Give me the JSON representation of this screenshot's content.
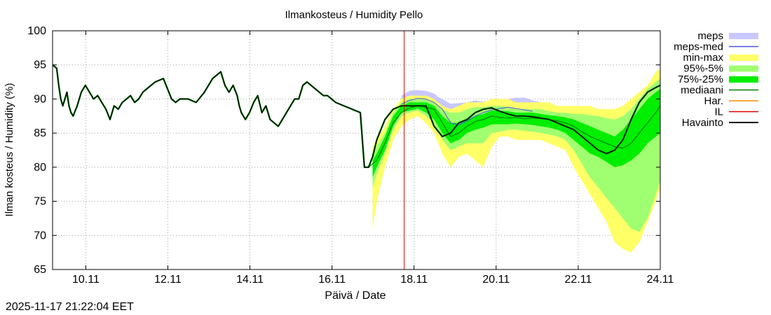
{
  "timestamp": "2025-11-17 21:22:04 EET",
  "chart_data": {
    "type": "line",
    "title": "Ilmankosteus / Humidity  Pello",
    "xlabel": "Päivä / Date",
    "ylabel": "Ilman kosteus / Humidity (%)",
    "ylim": [
      65,
      100
    ],
    "xlim": [
      9.3,
      24.11
    ],
    "grid": true,
    "legend_position": "right",
    "y_ticks": [
      65,
      70,
      75,
      80,
      85,
      90,
      95,
      100
    ],
    "x_ticks": [
      {
        "t": 10.11,
        "label": "10.11"
      },
      {
        "t": 12.11,
        "label": "12.11"
      },
      {
        "t": 14.11,
        "label": "14.11"
      },
      {
        "t": 16.11,
        "label": "16.11"
      },
      {
        "t": 18.11,
        "label": "18.11"
      },
      {
        "t": 20.11,
        "label": "20.11"
      },
      {
        "t": 22.11,
        "label": "22.11"
      },
      {
        "t": 24.11,
        "label": "24.11"
      }
    ],
    "now_marker": 17.87,
    "legend": [
      {
        "key": "meps",
        "label": "meps",
        "color": "#c8c8ff",
        "style": "band"
      },
      {
        "key": "meps_med",
        "label": "meps-med",
        "color": "#5050e0",
        "style": "line"
      },
      {
        "key": "minmax",
        "label": "min-max",
        "color": "#ffff66",
        "style": "band"
      },
      {
        "key": "p95_5",
        "label": "95%-5%",
        "color": "#a0ff70",
        "style": "band"
      },
      {
        "key": "p75_25",
        "label": "75%-25%",
        "color": "#00ee00",
        "style": "band"
      },
      {
        "key": "median",
        "label": "mediaani",
        "color": "#008000",
        "style": "line"
      },
      {
        "key": "har",
        "label": "Har.",
        "color": "#ff8800",
        "style": "line"
      },
      {
        "key": "il",
        "label": "IL",
        "color": "#dd0000",
        "style": "line"
      },
      {
        "key": "obs",
        "label": "Havainto",
        "color": "#000000",
        "style": "line"
      }
    ],
    "series": {
      "observed": {
        "x": [
          9.3,
          9.4,
          9.45,
          9.5,
          9.55,
          9.6,
          9.65,
          9.7,
          9.75,
          9.8,
          9.9,
          10.0,
          10.1,
          10.2,
          10.3,
          10.4,
          10.5,
          10.6,
          10.7,
          10.8,
          10.9,
          11.0,
          11.1,
          11.2,
          11.3,
          11.4,
          11.5,
          11.6,
          11.7,
          11.8,
          12.0,
          12.2,
          12.3,
          12.4,
          12.5,
          12.6,
          12.8,
          13.0,
          13.2,
          13.4,
          13.5,
          13.6,
          13.7,
          13.8,
          13.85,
          13.9,
          14.0,
          14.1,
          14.2,
          14.3,
          14.4,
          14.5,
          14.6,
          14.7,
          14.8,
          14.9,
          15.0,
          15.1,
          15.2,
          15.3,
          15.4,
          15.5,
          15.6,
          15.7,
          15.8,
          15.9,
          16.0,
          16.2,
          16.4,
          16.6,
          16.8,
          16.9,
          16.95,
          17.0,
          17.1,
          17.2,
          17.4,
          17.6,
          17.8,
          18.0,
          18.2,
          18.4,
          18.6,
          18.8,
          19.0,
          19.2,
          19.4,
          19.6,
          19.8,
          20.0,
          20.2,
          20.4,
          20.6,
          20.8,
          21.0,
          21.2,
          21.4,
          21.6,
          21.8,
          22.0,
          22.2,
          22.4,
          22.6,
          22.8,
          23.0,
          23.2,
          23.4,
          23.6,
          23.8,
          24.0,
          24.11
        ],
        "y": [
          95,
          94.5,
          92,
          90,
          89,
          90,
          91,
          89,
          88,
          87.5,
          89,
          91,
          92,
          91,
          90,
          90.5,
          89.5,
          88.5,
          87,
          89,
          88.5,
          89.5,
          90,
          90.5,
          89.5,
          90,
          91,
          91.5,
          92,
          92.5,
          93,
          90,
          89.5,
          90,
          90,
          90,
          89.5,
          91,
          93,
          94,
          92,
          91,
          92,
          90.5,
          89,
          88,
          87,
          88,
          89.5,
          90.5,
          88,
          89,
          87,
          86.5,
          86,
          87,
          88,
          89,
          90,
          90,
          92,
          92.5,
          92,
          91.5,
          91,
          90.5,
          90.5,
          89.5,
          89,
          88.5,
          88,
          80,
          80,
          80,
          81.5,
          84,
          87,
          88.5,
          89,
          89,
          89,
          89,
          86,
          84.5,
          85,
          86.5,
          87,
          88,
          88.5,
          88.7,
          88.2,
          87.8,
          87.5,
          87.5,
          87.4,
          87.2,
          87,
          86.5,
          86,
          85.5,
          84.5,
          83.5,
          82.5,
          82,
          82.5,
          84,
          87,
          89.5,
          91,
          91.7,
          92
        ]
      },
      "median": {
        "x": [
          17.0,
          17.2,
          17.4,
          17.6,
          17.8,
          18.0,
          18.2,
          18.4,
          18.6,
          18.8,
          19.0,
          19.2,
          19.4,
          19.6,
          19.8,
          20.0,
          20.2,
          20.4,
          20.6,
          20.8,
          21.0,
          21.2,
          21.4,
          21.6,
          21.8,
          22.0,
          22.2,
          22.4,
          22.6,
          22.8,
          23.0,
          23.2,
          23.4,
          23.6,
          23.8,
          24.0,
          24.11
        ],
        "y": [
          80,
          81,
          83.5,
          86.5,
          88,
          88.7,
          89,
          88.8,
          88.5,
          86.5,
          84.5,
          85,
          86,
          86.7,
          87,
          87.5,
          87.3,
          87.2,
          87.3,
          87.1,
          87.2,
          87.1,
          87.0,
          86.8,
          86.5,
          86.0,
          85.2,
          84.5,
          84.0,
          83.5,
          83.0,
          82.8,
          83.5,
          85.0,
          86.5,
          88.0,
          89.0
        ]
      },
      "band_minmax": {
        "x": [
          17.1,
          17.2,
          17.4,
          17.6,
          17.8,
          18.0,
          18.2,
          18.4,
          18.6,
          18.8,
          19.0,
          19.2,
          19.4,
          19.6,
          19.8,
          20.0,
          20.2,
          20.4,
          20.6,
          20.8,
          21.0,
          21.2,
          21.4,
          21.6,
          21.8,
          22.0,
          22.2,
          22.4,
          22.6,
          22.8,
          23.0,
          23.2,
          23.4,
          23.6,
          23.8,
          24.0,
          24.11
        ],
        "lower": [
          71,
          75,
          80,
          84,
          86,
          87,
          87.5,
          86.5,
          85,
          82,
          80,
          81.5,
          82,
          81,
          80,
          83,
          84.5,
          84.5,
          84,
          84,
          84,
          84,
          83.5,
          83,
          82.5,
          80,
          78,
          76,
          74,
          72,
          69,
          68,
          67.5,
          69,
          72,
          75,
          77
        ],
        "upper": [
          83,
          84,
          86,
          88.5,
          90,
          90.5,
          90.5,
          90.5,
          90,
          89,
          88.5,
          89,
          89.5,
          89.5,
          89.5,
          90,
          90,
          90,
          89.5,
          89.5,
          89.5,
          89.5,
          89.5,
          89,
          89,
          89,
          89,
          89,
          88.5,
          88.5,
          88.5,
          89,
          90,
          91,
          92,
          94,
          94.5
        ]
      },
      "band_95_5": {
        "x": [
          17.1,
          17.2,
          17.4,
          17.6,
          17.8,
          18.0,
          18.2,
          18.4,
          18.6,
          18.8,
          19.0,
          19.2,
          19.4,
          19.6,
          19.8,
          20.0,
          20.2,
          20.4,
          20.6,
          20.8,
          21.0,
          21.2,
          21.4,
          21.6,
          21.8,
          22.0,
          22.2,
          22.4,
          22.6,
          22.8,
          23.0,
          23.2,
          23.4,
          23.6,
          23.8,
          24.0,
          24.11
        ],
        "lower": [
          77,
          79,
          82,
          85.5,
          87.5,
          88,
          88.3,
          87.5,
          86.5,
          84,
          82.5,
          83,
          83.5,
          83.5,
          83.5,
          85,
          85.2,
          85.5,
          85.5,
          85.3,
          85.2,
          85,
          84.8,
          84.5,
          84,
          82.5,
          80.5,
          78.5,
          77,
          75.5,
          74,
          72.5,
          71,
          70.5,
          72.5,
          76,
          78
        ],
        "upper": [
          82,
          83,
          85,
          88,
          89.5,
          90,
          90,
          90,
          89.5,
          88.5,
          88,
          88,
          88.5,
          88.8,
          88.8,
          89,
          89,
          88.8,
          88.5,
          88.5,
          88.5,
          88.5,
          88.2,
          88,
          88,
          87.8,
          87.8,
          87.6,
          87.5,
          87.2,
          87,
          87.5,
          88.5,
          90,
          91.5,
          92.5,
          93
        ]
      },
      "band_75_25": {
        "x": [
          17.1,
          17.2,
          17.4,
          17.6,
          17.8,
          18.0,
          18.2,
          18.4,
          18.6,
          18.8,
          19.0,
          19.2,
          19.4,
          19.6,
          19.8,
          20.0,
          20.2,
          20.4,
          20.6,
          20.8,
          21.0,
          21.2,
          21.4,
          21.6,
          21.8,
          22.0,
          22.2,
          22.4,
          22.6,
          22.8,
          23.0,
          23.2,
          23.4,
          23.6,
          23.8,
          24.0,
          24.11
        ],
        "lower": [
          78.5,
          80,
          82.5,
          86,
          88,
          88.3,
          88.6,
          88,
          87,
          85,
          83.5,
          84,
          85,
          85.5,
          85.8,
          86.3,
          86.3,
          86.3,
          86.4,
          86.3,
          86.2,
          86,
          85.8,
          85.5,
          85,
          84,
          83,
          82,
          81.5,
          80.8,
          80,
          80.3,
          81,
          82,
          83.5,
          84.5,
          85
        ],
        "upper": [
          81,
          82,
          84.5,
          87.5,
          89,
          89.5,
          89.5,
          89.5,
          89,
          87.5,
          86.5,
          86.5,
          87,
          87.5,
          87.8,
          88.3,
          88.3,
          88.2,
          88,
          88,
          88,
          87.8,
          87.6,
          87.5,
          87.3,
          87,
          86.5,
          86,
          85.5,
          85,
          84.5,
          85.5,
          87,
          88.5,
          90,
          91,
          91.5
        ]
      },
      "band_meps": {
        "x": [
          17.8,
          18.0,
          18.2,
          18.4,
          18.6,
          18.7,
          19.0,
          19.4,
          19.6,
          19.8,
          20.0,
          20.4,
          20.6,
          20.8,
          21.0,
          21.2
        ],
        "lower": [
          88.5,
          89,
          89.2,
          89,
          88.5,
          88,
          86,
          87,
          87.5,
          88,
          88.5,
          88.5,
          88.5,
          88.3,
          88.3,
          88.3
        ],
        "upper": [
          90.5,
          91.2,
          91.3,
          91.2,
          90.8,
          90.3,
          89.3,
          89.5,
          89.8,
          89.6,
          89.8,
          90,
          90.2,
          90.2,
          89.8,
          89.5
        ]
      },
      "meps_med": {
        "x": [
          17.8,
          18.0,
          18.2,
          18.4,
          18.6,
          18.8,
          19.0,
          19.2,
          19.4,
          19.6,
          19.8,
          20.0,
          20.2,
          20.4,
          20.6,
          20.8,
          21.0
        ],
        "y": [
          89.2,
          89.8,
          90.1,
          90,
          89.5,
          88.5,
          86.5,
          86.2,
          86.8,
          87.5,
          88,
          88.4,
          88.6,
          88.8,
          88.6,
          88.4,
          88.2
        ]
      }
    }
  }
}
